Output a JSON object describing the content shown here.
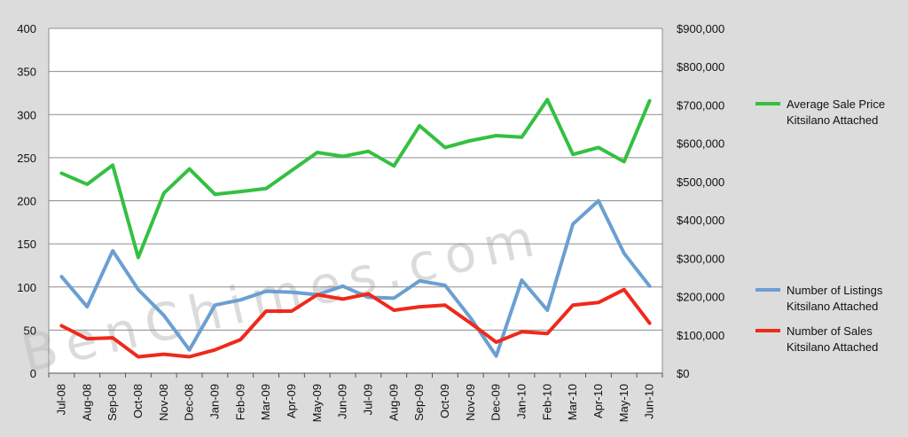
{
  "watermark": "BenChimes.com",
  "colors": {
    "background": "#dcdcdc",
    "plot_background": "#ffffff",
    "grid": "#8c8c8c",
    "price": "#34c042",
    "listings": "#6b9fd2",
    "sales": "#ee2a1b"
  },
  "chart_data": {
    "type": "line",
    "categories": [
      "Jul-08",
      "Aug-08",
      "Sep-08",
      "Oct-08",
      "Nov-08",
      "Dec-08",
      "Jan-09",
      "Feb-09",
      "Mar-09",
      "Apr-09",
      "May-09",
      "Jun-09",
      "Jul-09",
      "Aug-09",
      "Sep-09",
      "Oct-09",
      "Nov-09",
      "Dec-09",
      "Jan-10",
      "Feb-10",
      "Mar-10",
      "Apr-10",
      "May-10",
      "Jun-10"
    ],
    "y_left": {
      "ylim": [
        0,
        400
      ],
      "ticks": [
        "0",
        "50",
        "100",
        "150",
        "200",
        "250",
        "300",
        "350",
        "400"
      ]
    },
    "y_right": {
      "ylim": [
        0,
        900000
      ],
      "ticks": [
        "$0",
        "$100,000",
        "$200,000",
        "$300,000",
        "$400,000",
        "$500,000",
        "$600,000",
        "$700,000",
        "$800,000",
        "$900,000"
      ]
    },
    "grid": true,
    "legend_position": "right",
    "series": [
      {
        "name": [
          "Average Sale Price",
          "Kitsilano Attached"
        ],
        "axis": "right",
        "color": "#34c042",
        "values": [
          522000,
          493000,
          543000,
          302000,
          470000,
          533000,
          467000,
          474000,
          482000,
          529000,
          576000,
          566000,
          579000,
          541000,
          646000,
          589000,
          607000,
          620000,
          616000,
          714000,
          571000,
          589000,
          552000,
          711000
        ]
      },
      {
        "name": [
          "Number of Listings",
          "Kitsilano Attached"
        ],
        "axis": "left",
        "color": "#6b9fd2",
        "values": [
          112,
          77,
          142,
          97,
          67,
          27,
          79,
          85,
          95,
          94,
          91,
          101,
          88,
          87,
          107,
          102,
          64,
          20,
          108,
          73,
          173,
          200,
          139,
          101
        ]
      },
      {
        "name": [
          "Number of Sales",
          "Kitsilano Attached"
        ],
        "axis": "left",
        "color": "#ee2a1b",
        "values": [
          55,
          40,
          41,
          19,
          22,
          19,
          27,
          39,
          72,
          72,
          91,
          86,
          92,
          73,
          77,
          79,
          58,
          36,
          48,
          46,
          79,
          82,
          97,
          58
        ]
      }
    ]
  }
}
